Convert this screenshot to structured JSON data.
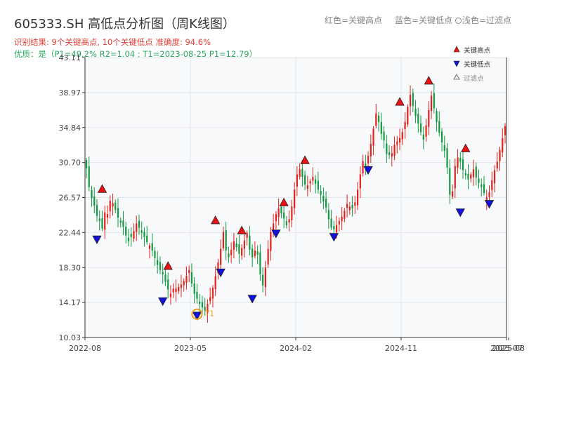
{
  "header": {
    "title": "605333.SH 高低点分析图（周K线图）",
    "legend_red": "红色=关键高点",
    "legend_blue": "蓝色=关键低点",
    "legend_gray": "浅色=过滤点",
    "result": "识别结果: 9个关键高点, 10个关键低点   准确度: 94.6%",
    "quality": "优质：是（P1=49.2%  R2=1.04 ; T1=2023-08-25 P1=12.79）"
  },
  "colors": {
    "up": "#e2221c",
    "down": "#129a40",
    "high_marker": "#ee1111",
    "low_marker": "#1111dd",
    "t1": "#f0a020",
    "plot_bg": "#f7f9fb"
  },
  "chart_data": {
    "type": "candlestick",
    "title": "605333.SH 高低点分析图（周K线图）",
    "y_ticks": [
      10.03,
      14.17,
      18.3,
      22.44,
      26.57,
      30.7,
      34.84,
      38.97,
      43.11
    ],
    "x_ticks": [
      "2022-08",
      "2023-05",
      "2024-02",
      "2024-11",
      "2025-07",
      "2025-08"
    ],
    "ylim": [
      10.03,
      43.11
    ],
    "x_range": [
      "2022-08",
      "2025-08"
    ],
    "grid": true,
    "legend": {
      "position": "top-right",
      "entries": [
        "关键高点",
        "关键低点",
        "过滤点"
      ]
    },
    "weekly_close": [
      30.0,
      27.8,
      26.5,
      25.6,
      24.4,
      23.8,
      22.9,
      24.8,
      24.6,
      26.2,
      25.9,
      25.1,
      24.2,
      23.6,
      23.1,
      22.1,
      21.4,
      21.9,
      22.6,
      23.5,
      23.0,
      22.4,
      21.9,
      21.3,
      20.9,
      20.3,
      19.4,
      18.6,
      18.0,
      17.5,
      16.6,
      15.7,
      15.2,
      15.8,
      15.8,
      16.0,
      16.3,
      16.7,
      17.3,
      18.0,
      16.4,
      15.2,
      14.6,
      14.0,
      13.6,
      13.2,
      14.0,
      14.8,
      15.9,
      17.3,
      18.9,
      20.5,
      22.5,
      20.3,
      19.5,
      20.4,
      21.4,
      20.7,
      19.9,
      20.6,
      21.5,
      22.4,
      20.4,
      19.5,
      20.3,
      19.8,
      17.5,
      16.2,
      18.3,
      20.5,
      22.5,
      23.5,
      24.6,
      25.3,
      24.7,
      24.1,
      23.3,
      24.0,
      25.5,
      27.5,
      29.3,
      29.9,
      29.0,
      28.1,
      28.0,
      28.5,
      29.0,
      28.2,
      27.5,
      26.9,
      26.1,
      25.4,
      24.0,
      23.0,
      22.8,
      23.3,
      23.8,
      24.3,
      25.0,
      25.8,
      25.5,
      25.3,
      26.0,
      27.5,
      29.3,
      30.9,
      30.3,
      31.5,
      32.9,
      34.7,
      36.5,
      35.5,
      34.1,
      33.3,
      31.7,
      31.6,
      31.8,
      32.8,
      33.2,
      33.6,
      34.3,
      35.5,
      37.3,
      38.7,
      37.4,
      36.2,
      35.3,
      34.3,
      33.4,
      35.1,
      36.9,
      38.6,
      37.1,
      35.5,
      34.2,
      33.1,
      32.1,
      30.1,
      26.9,
      27.3,
      30.3,
      31.3,
      30.8,
      29.8,
      29.2,
      28.7,
      29.3,
      29.9,
      28.9,
      28.3,
      27.8,
      27.1,
      26.6,
      27.2,
      28.6,
      29.8,
      30.8,
      32.2,
      33.6,
      35.0
    ],
    "key_highs": [
      {
        "week": 6,
        "price": 27.0
      },
      {
        "week": 31,
        "price": 17.9
      },
      {
        "week": 49,
        "price": 23.3
      },
      {
        "week": 59,
        "price": 22.1
      },
      {
        "week": 75,
        "price": 25.4
      },
      {
        "week": 83,
        "price": 30.4
      },
      {
        "week": 119,
        "price": 37.3
      },
      {
        "week": 130,
        "price": 39.8
      },
      {
        "week": 144,
        "price": 31.8
      }
    ],
    "key_lows": [
      {
        "week": 4,
        "price": 22.2
      },
      {
        "week": 29,
        "price": 14.9
      },
      {
        "week": 42,
        "price": 13.2
      },
      {
        "week": 51,
        "price": 18.3
      },
      {
        "week": 63,
        "price": 15.2
      },
      {
        "week": 72,
        "price": 22.9
      },
      {
        "week": 94,
        "price": 22.5
      },
      {
        "week": 107,
        "price": 30.4
      },
      {
        "week": 142,
        "price": 25.4
      },
      {
        "week": 153,
        "price": 26.4
      }
    ],
    "t1_marker": {
      "label": "T1",
      "week": 42,
      "price": 12.79
    }
  }
}
